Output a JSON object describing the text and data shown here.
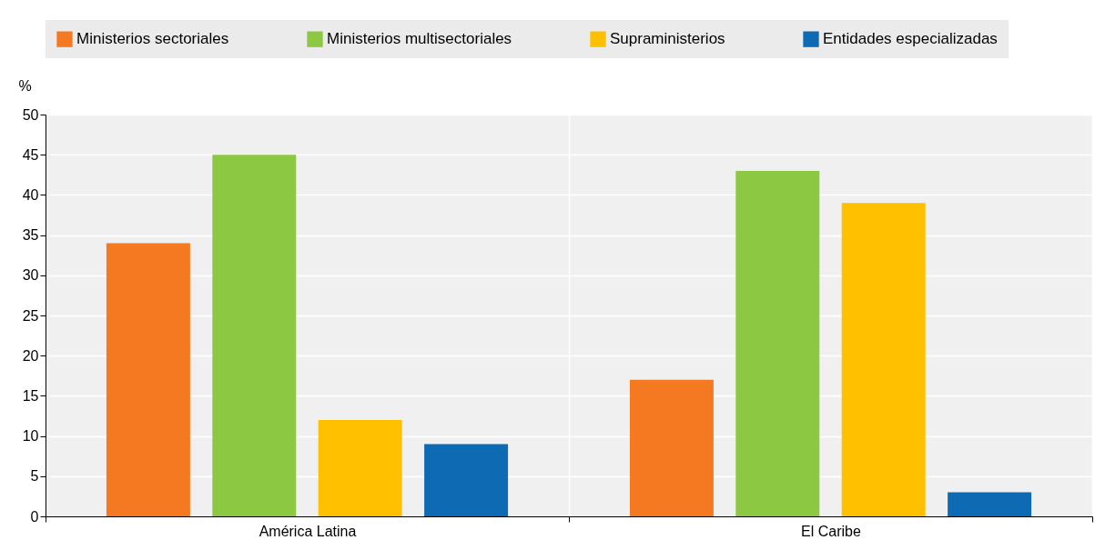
{
  "chart_data": {
    "type": "bar",
    "ylabel": "%",
    "categories": [
      "América Latina",
      "El Caribe"
    ],
    "series": [
      {
        "name": "Ministerios sectoriales",
        "color": "#f47920",
        "values": [
          34,
          17
        ]
      },
      {
        "name": "Ministerios multisectoriales",
        "color": "#8cc841",
        "values": [
          45,
          43
        ]
      },
      {
        "name": "Supraministerios",
        "color": "#ffc000",
        "values": [
          12,
          39
        ]
      },
      {
        "name": "Entidades especializadas",
        "color": "#0f6ab4",
        "values": [
          9,
          3
        ]
      }
    ],
    "ylim": [
      0,
      50
    ],
    "yticks": [
      0,
      5,
      10,
      15,
      20,
      25,
      30,
      35,
      40,
      45,
      50
    ],
    "grid": "y",
    "legend": "top"
  }
}
